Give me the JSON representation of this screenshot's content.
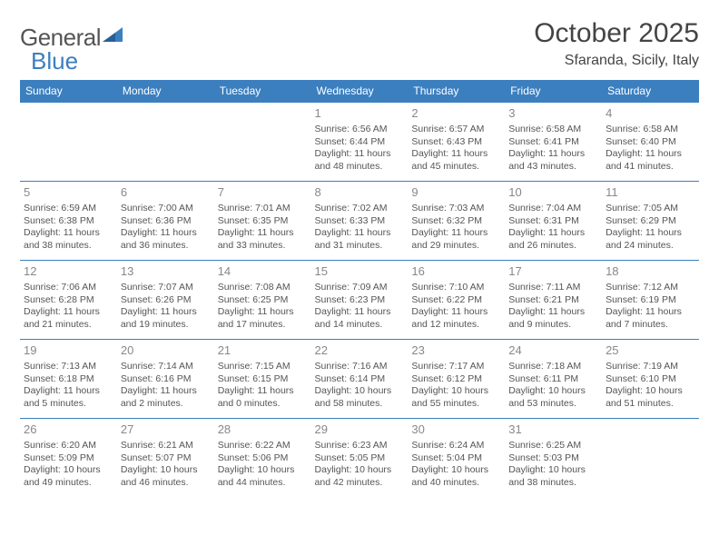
{
  "brand": {
    "name_a": "General",
    "name_b": "Blue"
  },
  "title": "October 2025",
  "location": "Sfaranda, Sicily, Italy",
  "colors": {
    "header_bg": "#3b7fbf",
    "header_text": "#ffffff",
    "rule": "#3b7fbf",
    "text": "#555555",
    "daynum": "#888888",
    "title": "#444444"
  },
  "typography": {
    "title_fontsize": 30,
    "location_fontsize": 16,
    "th_fontsize": 12,
    "cell_fontsize": 10.5,
    "daynum_fontsize": 13
  },
  "day_headers": [
    "Sunday",
    "Monday",
    "Tuesday",
    "Wednesday",
    "Thursday",
    "Friday",
    "Saturday"
  ],
  "weeks": [
    [
      null,
      null,
      null,
      {
        "n": "1",
        "sr": "Sunrise: 6:56 AM",
        "ss": "Sunset: 6:44 PM",
        "dl1": "Daylight: 11 hours",
        "dl2": "and 48 minutes."
      },
      {
        "n": "2",
        "sr": "Sunrise: 6:57 AM",
        "ss": "Sunset: 6:43 PM",
        "dl1": "Daylight: 11 hours",
        "dl2": "and 45 minutes."
      },
      {
        "n": "3",
        "sr": "Sunrise: 6:58 AM",
        "ss": "Sunset: 6:41 PM",
        "dl1": "Daylight: 11 hours",
        "dl2": "and 43 minutes."
      },
      {
        "n": "4",
        "sr": "Sunrise: 6:58 AM",
        "ss": "Sunset: 6:40 PM",
        "dl1": "Daylight: 11 hours",
        "dl2": "and 41 minutes."
      }
    ],
    [
      {
        "n": "5",
        "sr": "Sunrise: 6:59 AM",
        "ss": "Sunset: 6:38 PM",
        "dl1": "Daylight: 11 hours",
        "dl2": "and 38 minutes."
      },
      {
        "n": "6",
        "sr": "Sunrise: 7:00 AM",
        "ss": "Sunset: 6:36 PM",
        "dl1": "Daylight: 11 hours",
        "dl2": "and 36 minutes."
      },
      {
        "n": "7",
        "sr": "Sunrise: 7:01 AM",
        "ss": "Sunset: 6:35 PM",
        "dl1": "Daylight: 11 hours",
        "dl2": "and 33 minutes."
      },
      {
        "n": "8",
        "sr": "Sunrise: 7:02 AM",
        "ss": "Sunset: 6:33 PM",
        "dl1": "Daylight: 11 hours",
        "dl2": "and 31 minutes."
      },
      {
        "n": "9",
        "sr": "Sunrise: 7:03 AM",
        "ss": "Sunset: 6:32 PM",
        "dl1": "Daylight: 11 hours",
        "dl2": "and 29 minutes."
      },
      {
        "n": "10",
        "sr": "Sunrise: 7:04 AM",
        "ss": "Sunset: 6:31 PM",
        "dl1": "Daylight: 11 hours",
        "dl2": "and 26 minutes."
      },
      {
        "n": "11",
        "sr": "Sunrise: 7:05 AM",
        "ss": "Sunset: 6:29 PM",
        "dl1": "Daylight: 11 hours",
        "dl2": "and 24 minutes."
      }
    ],
    [
      {
        "n": "12",
        "sr": "Sunrise: 7:06 AM",
        "ss": "Sunset: 6:28 PM",
        "dl1": "Daylight: 11 hours",
        "dl2": "and 21 minutes."
      },
      {
        "n": "13",
        "sr": "Sunrise: 7:07 AM",
        "ss": "Sunset: 6:26 PM",
        "dl1": "Daylight: 11 hours",
        "dl2": "and 19 minutes."
      },
      {
        "n": "14",
        "sr": "Sunrise: 7:08 AM",
        "ss": "Sunset: 6:25 PM",
        "dl1": "Daylight: 11 hours",
        "dl2": "and 17 minutes."
      },
      {
        "n": "15",
        "sr": "Sunrise: 7:09 AM",
        "ss": "Sunset: 6:23 PM",
        "dl1": "Daylight: 11 hours",
        "dl2": "and 14 minutes."
      },
      {
        "n": "16",
        "sr": "Sunrise: 7:10 AM",
        "ss": "Sunset: 6:22 PM",
        "dl1": "Daylight: 11 hours",
        "dl2": "and 12 minutes."
      },
      {
        "n": "17",
        "sr": "Sunrise: 7:11 AM",
        "ss": "Sunset: 6:21 PM",
        "dl1": "Daylight: 11 hours",
        "dl2": "and 9 minutes."
      },
      {
        "n": "18",
        "sr": "Sunrise: 7:12 AM",
        "ss": "Sunset: 6:19 PM",
        "dl1": "Daylight: 11 hours",
        "dl2": "and 7 minutes."
      }
    ],
    [
      {
        "n": "19",
        "sr": "Sunrise: 7:13 AM",
        "ss": "Sunset: 6:18 PM",
        "dl1": "Daylight: 11 hours",
        "dl2": "and 5 minutes."
      },
      {
        "n": "20",
        "sr": "Sunrise: 7:14 AM",
        "ss": "Sunset: 6:16 PM",
        "dl1": "Daylight: 11 hours",
        "dl2": "and 2 minutes."
      },
      {
        "n": "21",
        "sr": "Sunrise: 7:15 AM",
        "ss": "Sunset: 6:15 PM",
        "dl1": "Daylight: 11 hours",
        "dl2": "and 0 minutes."
      },
      {
        "n": "22",
        "sr": "Sunrise: 7:16 AM",
        "ss": "Sunset: 6:14 PM",
        "dl1": "Daylight: 10 hours",
        "dl2": "and 58 minutes."
      },
      {
        "n": "23",
        "sr": "Sunrise: 7:17 AM",
        "ss": "Sunset: 6:12 PM",
        "dl1": "Daylight: 10 hours",
        "dl2": "and 55 minutes."
      },
      {
        "n": "24",
        "sr": "Sunrise: 7:18 AM",
        "ss": "Sunset: 6:11 PM",
        "dl1": "Daylight: 10 hours",
        "dl2": "and 53 minutes."
      },
      {
        "n": "25",
        "sr": "Sunrise: 7:19 AM",
        "ss": "Sunset: 6:10 PM",
        "dl1": "Daylight: 10 hours",
        "dl2": "and 51 minutes."
      }
    ],
    [
      {
        "n": "26",
        "sr": "Sunrise: 6:20 AM",
        "ss": "Sunset: 5:09 PM",
        "dl1": "Daylight: 10 hours",
        "dl2": "and 49 minutes."
      },
      {
        "n": "27",
        "sr": "Sunrise: 6:21 AM",
        "ss": "Sunset: 5:07 PM",
        "dl1": "Daylight: 10 hours",
        "dl2": "and 46 minutes."
      },
      {
        "n": "28",
        "sr": "Sunrise: 6:22 AM",
        "ss": "Sunset: 5:06 PM",
        "dl1": "Daylight: 10 hours",
        "dl2": "and 44 minutes."
      },
      {
        "n": "29",
        "sr": "Sunrise: 6:23 AM",
        "ss": "Sunset: 5:05 PM",
        "dl1": "Daylight: 10 hours",
        "dl2": "and 42 minutes."
      },
      {
        "n": "30",
        "sr": "Sunrise: 6:24 AM",
        "ss": "Sunset: 5:04 PM",
        "dl1": "Daylight: 10 hours",
        "dl2": "and 40 minutes."
      },
      {
        "n": "31",
        "sr": "Sunrise: 6:25 AM",
        "ss": "Sunset: 5:03 PM",
        "dl1": "Daylight: 10 hours",
        "dl2": "and 38 minutes."
      },
      null
    ]
  ]
}
